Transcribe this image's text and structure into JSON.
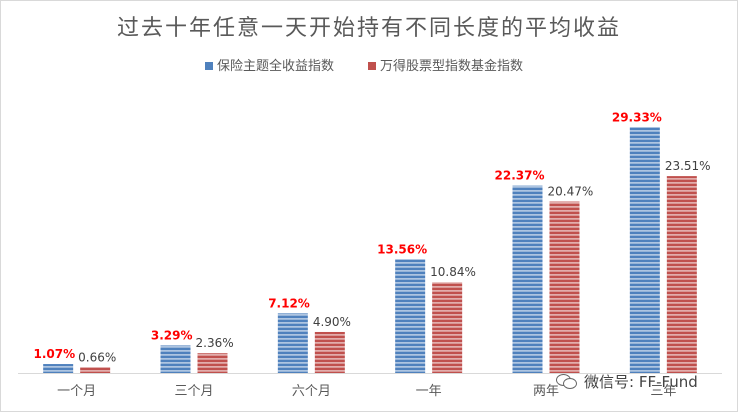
{
  "chart_data": {
    "type": "bar",
    "title": "过去十年任意一天开始持有不同长度的平均收益",
    "categories": [
      "一个月",
      "三个月",
      "六个月",
      "一年",
      "两年",
      "三年"
    ],
    "series": [
      {
        "name": "保险主题全收益指数",
        "values": [
          1.07,
          3.29,
          7.12,
          13.56,
          22.37,
          29.33
        ],
        "labels": [
          "1.07%",
          "3.29%",
          "7.12%",
          "13.56%",
          "22.37%",
          "29.33%"
        ],
        "color": "#4f81bd",
        "label_color": "#ff0000"
      },
      {
        "name": "万得股票型指数基金指数",
        "values": [
          0.66,
          2.36,
          4.9,
          10.84,
          20.47,
          23.51
        ],
        "labels": [
          "0.66%",
          "2.36%",
          "4.90%",
          "10.84%",
          "20.47%",
          "23.51%"
        ],
        "color": "#c0504d",
        "label_color": "#404040"
      }
    ],
    "ylim": [
      0,
      32
    ],
    "grid": false,
    "legend_position": "top"
  },
  "watermark": {
    "text": "微信号: FF-Fund",
    "icon": "wechat-icon"
  }
}
